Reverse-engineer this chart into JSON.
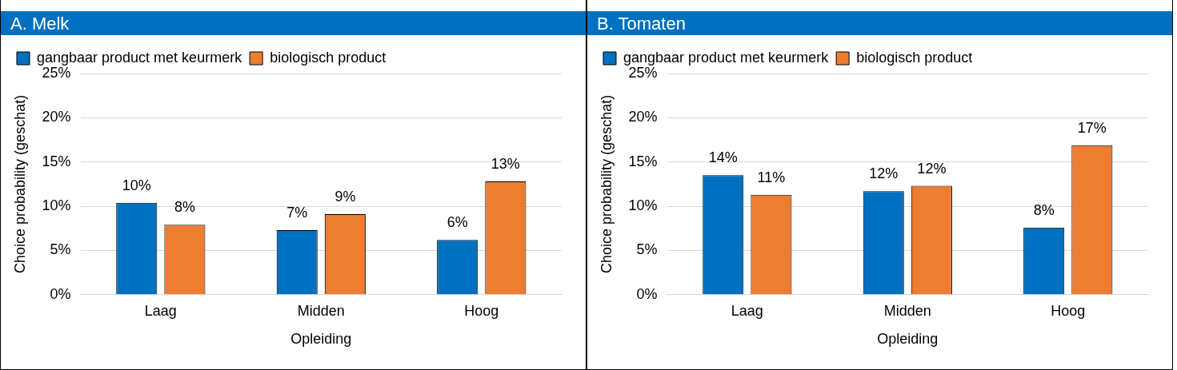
{
  "chart_data": [
    {
      "type": "bar",
      "title": "A. Melk",
      "xlabel": "Opleiding",
      "ylabel": "Choice probability (geschat)",
      "categories": [
        "Laag",
        "Midden",
        "Hoog"
      ],
      "series": [
        {
          "name": "gangbaar product met keurmerk",
          "color": "#0070c0",
          "values": [
            10.4,
            7.3,
            6.2
          ],
          "value_labels": [
            "10%",
            "7%",
            "6%"
          ]
        },
        {
          "name": "biologisch product",
          "color": "#ed7d31",
          "values": [
            7.9,
            9.1,
            12.8
          ],
          "value_labels": [
            "8%",
            "9%",
            "13%"
          ]
        }
      ],
      "ylim": [
        0,
        25
      ],
      "yticks": [
        {
          "value": 0,
          "label": "0%"
        },
        {
          "value": 5,
          "label": "5%"
        },
        {
          "value": 10,
          "label": "10%"
        },
        {
          "value": 15,
          "label": "15%"
        },
        {
          "value": 20,
          "label": "20%"
        },
        {
          "value": 25,
          "label": "25%"
        }
      ],
      "grid": "y",
      "legend": "top left"
    },
    {
      "type": "bar",
      "title": "B. Tomaten",
      "xlabel": "Opleiding",
      "ylabel": "Choice probability (geschat)",
      "categories": [
        "Laag",
        "Midden",
        "Hoog"
      ],
      "series": [
        {
          "name": "gangbaar product met keurmerk",
          "color": "#0070c0",
          "values": [
            13.5,
            11.7,
            7.6
          ],
          "value_labels": [
            "14%",
            "12%",
            "8%"
          ]
        },
        {
          "name": "biologisch product",
          "color": "#ed7d31",
          "values": [
            11.3,
            12.3,
            16.9
          ],
          "value_labels": [
            "11%",
            "12%",
            "17%"
          ]
        }
      ],
      "ylim": [
        0,
        25
      ],
      "yticks": [
        {
          "value": 0,
          "label": "0%"
        },
        {
          "value": 5,
          "label": "5%"
        },
        {
          "value": 10,
          "label": "10%"
        },
        {
          "value": 15,
          "label": "15%"
        },
        {
          "value": 20,
          "label": "20%"
        },
        {
          "value": 25,
          "label": "25%"
        }
      ],
      "grid": "y",
      "legend": "top left"
    }
  ]
}
